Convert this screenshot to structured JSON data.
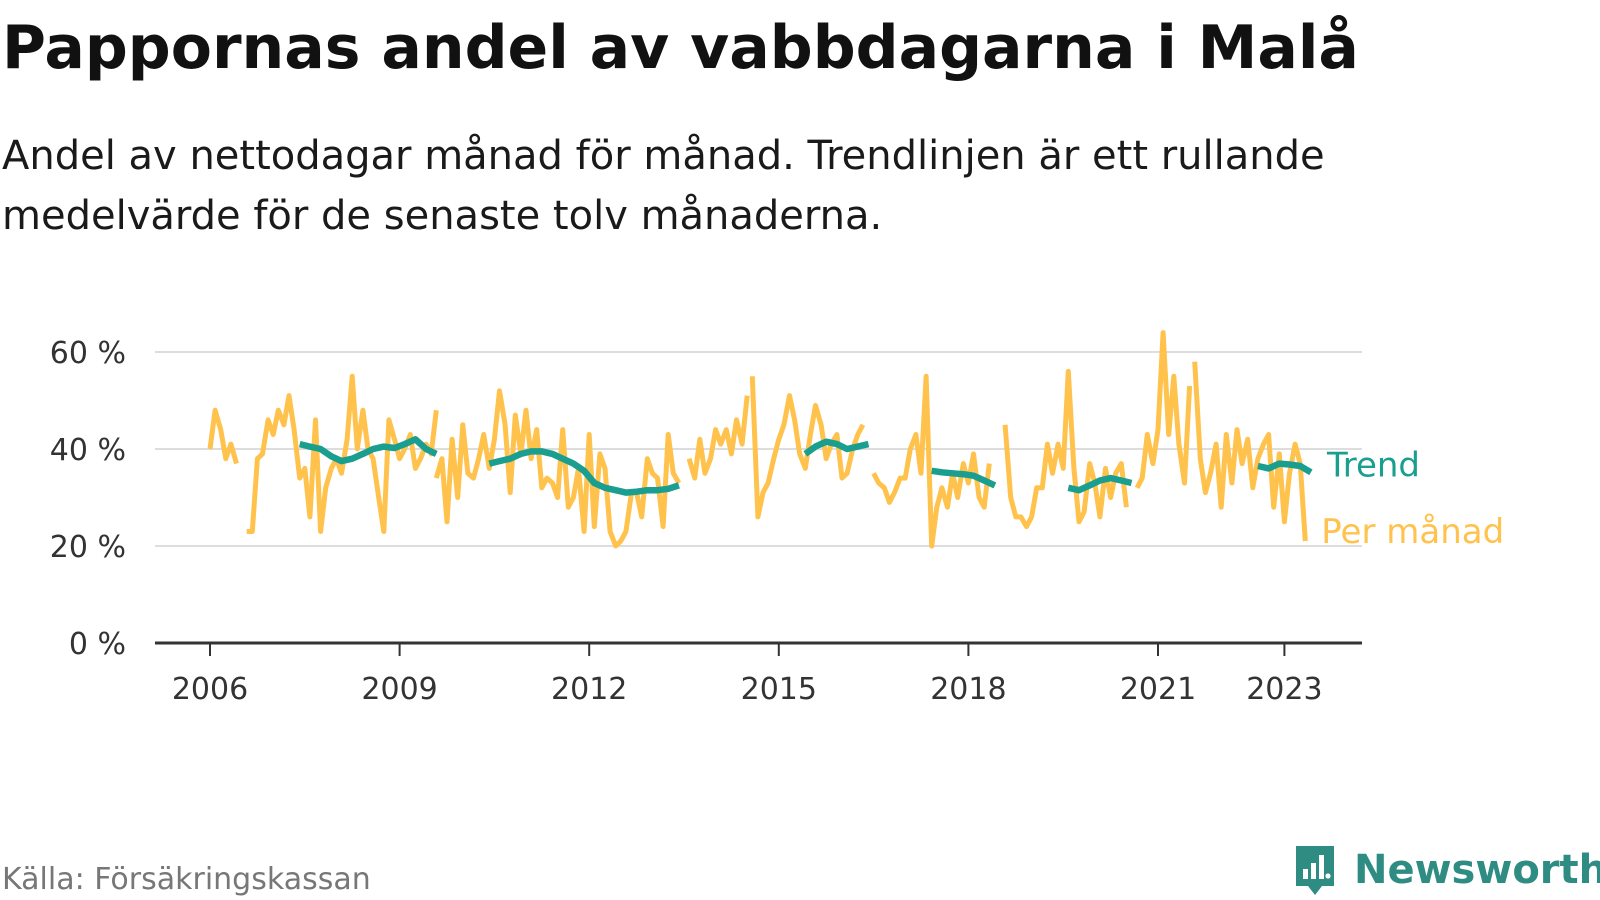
{
  "title": "Pappornas andel av vabbdagarna i Malå",
  "subtitle": "Andel av nettodagar månad för månad. Trendlinjen är ett rullande medelvärde för de senaste tolv månaderna.",
  "source": "Källa: Försäkringskassan",
  "brand": {
    "name": "Newsworthy",
    "icon": "newsworthy-logo-icon"
  },
  "colors": {
    "monthly": "#FFC24D",
    "trend": "#1A9E8F",
    "grid": "#DDDDDD",
    "axis": "#333333",
    "brand": "#2F8C83"
  },
  "chart_data": {
    "type": "line",
    "x_unit": "year",
    "xlim": [
      2006,
      2023.8
    ],
    "ylim": [
      0,
      60
    ],
    "grid": true,
    "y_ticks": [
      0,
      20,
      40,
      60
    ],
    "y_tick_labels": [
      "0 %",
      "20 %",
      "40 %",
      "60 %"
    ],
    "x_ticks": [
      2006,
      2009,
      2012,
      2015,
      2018,
      2021,
      2023
    ],
    "x_tick_labels": [
      "2006",
      "2009",
      "2012",
      "2015",
      "2018",
      "2021",
      "2023"
    ],
    "legend_placement": "end-of-line labels",
    "series": [
      {
        "name": "Per månad",
        "role": "monthly",
        "segments": [
          [
            [
              2006.0,
              40
            ],
            [
              2006.08,
              48
            ],
            [
              2006.17,
              44
            ],
            [
              2006.25,
              38
            ],
            [
              2006.33,
              41
            ],
            [
              2006.42,
              37
            ]
          ],
          [
            [
              2006.58,
              23
            ],
            [
              2006.67,
              23
            ],
            [
              2006.75,
              38
            ],
            [
              2006.83,
              39
            ],
            [
              2006.92,
              46
            ],
            [
              2007.0,
              43
            ],
            [
              2007.08,
              48
            ],
            [
              2007.17,
              45
            ],
            [
              2007.25,
              51
            ],
            [
              2007.33,
              44
            ],
            [
              2007.42,
              34
            ],
            [
              2007.5,
              36
            ],
            [
              2007.58,
              26
            ],
            [
              2007.67,
              46
            ],
            [
              2007.75,
              23
            ],
            [
              2007.83,
              32
            ],
            [
              2007.92,
              36
            ],
            [
              2008.0,
              38
            ],
            [
              2008.08,
              35
            ],
            [
              2008.17,
              42
            ],
            [
              2008.25,
              55
            ],
            [
              2008.33,
              40
            ],
            [
              2008.42,
              48
            ],
            [
              2008.5,
              40
            ],
            [
              2008.58,
              38
            ],
            [
              2008.67,
              30
            ],
            [
              2008.75,
              23
            ],
            [
              2008.83,
              46
            ],
            [
              2008.92,
              42
            ],
            [
              2009.0,
              38
            ],
            [
              2009.08,
              40
            ],
            [
              2009.17,
              43
            ],
            [
              2009.25,
              36
            ],
            [
              2009.33,
              38
            ],
            [
              2009.42,
              41
            ],
            [
              2009.5,
              39
            ],
            [
              2009.58,
              48
            ]
          ],
          [
            [
              2009.58,
              34
            ],
            [
              2009.67,
              38
            ],
            [
              2009.75,
              25
            ],
            [
              2009.83,
              42
            ],
            [
              2009.92,
              30
            ],
            [
              2010.0,
              45
            ],
            [
              2010.08,
              35
            ],
            [
              2010.17,
              34
            ],
            [
              2010.25,
              38
            ],
            [
              2010.33,
              43
            ],
            [
              2010.42,
              36
            ],
            [
              2010.5,
              42
            ],
            [
              2010.58,
              52
            ],
            [
              2010.67,
              45
            ],
            [
              2010.75,
              31
            ],
            [
              2010.83,
              47
            ],
            [
              2010.92,
              39
            ],
            [
              2011.0,
              48
            ],
            [
              2011.08,
              38
            ],
            [
              2011.17,
              44
            ],
            [
              2011.25,
              32
            ],
            [
              2011.33,
              34
            ],
            [
              2011.42,
              33
            ],
            [
              2011.5,
              30
            ],
            [
              2011.58,
              44
            ],
            [
              2011.67,
              28
            ],
            [
              2011.75,
              30
            ],
            [
              2011.83,
              36
            ],
            [
              2011.92,
              23
            ],
            [
              2012.0,
              43
            ],
            [
              2012.08,
              24
            ],
            [
              2012.17,
              39
            ],
            [
              2012.25,
              36
            ],
            [
              2012.33,
              23
            ],
            [
              2012.42,
              20
            ],
            [
              2012.5,
              21
            ],
            [
              2012.58,
              23
            ],
            [
              2012.67,
              31
            ],
            [
              2012.75,
              31
            ],
            [
              2012.83,
              26
            ],
            [
              2012.92,
              38
            ],
            [
              2013.0,
              35
            ],
            [
              2013.08,
              34
            ],
            [
              2013.17,
              24
            ],
            [
              2013.25,
              43
            ],
            [
              2013.33,
              35
            ],
            [
              2013.42,
              33
            ]
          ],
          [
            [
              2013.58,
              38
            ],
            [
              2013.67,
              34
            ],
            [
              2013.75,
              42
            ],
            [
              2013.83,
              35
            ],
            [
              2013.92,
              38
            ],
            [
              2014.0,
              44
            ],
            [
              2014.08,
              41
            ],
            [
              2014.17,
              44
            ],
            [
              2014.25,
              39
            ],
            [
              2014.33,
              46
            ],
            [
              2014.42,
              41
            ],
            [
              2014.5,
              51
            ]
          ],
          [
            [
              2014.58,
              55
            ],
            [
              2014.67,
              26
            ],
            [
              2014.75,
              31
            ],
            [
              2014.83,
              33
            ],
            [
              2014.92,
              38
            ],
            [
              2015.0,
              42
            ],
            [
              2015.08,
              45
            ],
            [
              2015.17,
              51
            ],
            [
              2015.25,
              46
            ],
            [
              2015.33,
              39
            ],
            [
              2015.42,
              36
            ],
            [
              2015.5,
              43
            ],
            [
              2015.58,
              49
            ],
            [
              2015.67,
              45
            ],
            [
              2015.75,
              38
            ],
            [
              2015.83,
              41
            ],
            [
              2015.92,
              43
            ],
            [
              2016.0,
              34
            ],
            [
              2016.08,
              35
            ],
            [
              2016.17,
              40
            ],
            [
              2016.25,
              43
            ],
            [
              2016.33,
              45
            ]
          ],
          [
            [
              2016.5,
              35
            ],
            [
              2016.58,
              33
            ],
            [
              2016.67,
              32
            ],
            [
              2016.75,
              29
            ],
            [
              2016.83,
              31
            ],
            [
              2016.92,
              34
            ],
            [
              2017.0,
              34
            ],
            [
              2017.08,
              40
            ],
            [
              2017.17,
              43
            ],
            [
              2017.25,
              35
            ],
            [
              2017.33,
              55
            ],
            [
              2017.42,
              20
            ],
            [
              2017.5,
              28
            ],
            [
              2017.58,
              32
            ],
            [
              2017.67,
              28
            ],
            [
              2017.75,
              35
            ],
            [
              2017.83,
              30
            ],
            [
              2017.92,
              37
            ],
            [
              2018.0,
              33
            ],
            [
              2018.08,
              39
            ],
            [
              2018.17,
              30
            ],
            [
              2018.25,
              28
            ],
            [
              2018.33,
              37
            ]
          ],
          [
            [
              2018.58,
              45
            ],
            [
              2018.67,
              30
            ],
            [
              2018.75,
              26
            ],
            [
              2018.83,
              26
            ],
            [
              2018.92,
              24
            ],
            [
              2019.0,
              26
            ],
            [
              2019.08,
              32
            ],
            [
              2019.17,
              32
            ],
            [
              2019.25,
              41
            ],
            [
              2019.33,
              35
            ],
            [
              2019.42,
              41
            ],
            [
              2019.5,
              36
            ],
            [
              2019.58,
              56
            ],
            [
              2019.67,
              36
            ],
            [
              2019.75,
              25
            ],
            [
              2019.83,
              27
            ],
            [
              2019.92,
              37
            ],
            [
              2020.0,
              33
            ],
            [
              2020.08,
              26
            ],
            [
              2020.17,
              36
            ],
            [
              2020.25,
              30
            ],
            [
              2020.33,
              35
            ],
            [
              2020.42,
              37
            ],
            [
              2020.5,
              28
            ]
          ],
          [
            [
              2020.67,
              32
            ],
            [
              2020.75,
              34
            ],
            [
              2020.83,
              43
            ],
            [
              2020.92,
              37
            ],
            [
              2021.0,
              44
            ],
            [
              2021.08,
              64
            ],
            [
              2021.17,
              43
            ],
            [
              2021.25,
              55
            ],
            [
              2021.33,
              41
            ],
            [
              2021.42,
              33
            ],
            [
              2021.5,
              53
            ]
          ],
          [
            [
              2021.58,
              58
            ],
            [
              2021.67,
              38
            ],
            [
              2021.75,
              31
            ],
            [
              2021.83,
              35
            ],
            [
              2021.92,
              41
            ],
            [
              2022.0,
              28
            ],
            [
              2022.08,
              43
            ],
            [
              2022.17,
              33
            ],
            [
              2022.25,
              44
            ],
            [
              2022.33,
              37
            ],
            [
              2022.42,
              42
            ],
            [
              2022.5,
              32
            ],
            [
              2022.58,
              38
            ],
            [
              2022.67,
              41
            ],
            [
              2022.75,
              43
            ],
            [
              2022.83,
              28
            ],
            [
              2022.92,
              39
            ],
            [
              2023.0,
              25
            ],
            [
              2023.08,
              35
            ],
            [
              2023.17,
              41
            ],
            [
              2023.25,
              37
            ],
            [
              2023.33,
              21
            ]
          ]
        ]
      },
      {
        "name": "Trend",
        "role": "trend",
        "segments": [
          [
            [
              2007.42,
              41
            ],
            [
              2007.58,
              40.5
            ],
            [
              2007.75,
              40
            ],
            [
              2007.92,
              38.5
            ],
            [
              2008.08,
              37.5
            ],
            [
              2008.25,
              38
            ],
            [
              2008.42,
              39
            ],
            [
              2008.58,
              40
            ],
            [
              2008.75,
              40.5
            ],
            [
              2008.92,
              40.2
            ],
            [
              2009.08,
              41
            ],
            [
              2009.25,
              42
            ],
            [
              2009.42,
              40
            ],
            [
              2009.58,
              39
            ]
          ],
          [
            [
              2010.42,
              37
            ],
            [
              2010.58,
              37.5
            ],
            [
              2010.75,
              38
            ],
            [
              2010.92,
              39
            ],
            [
              2011.08,
              39.5
            ],
            [
              2011.25,
              39.5
            ],
            [
              2011.42,
              39
            ],
            [
              2011.58,
              38
            ],
            [
              2011.75,
              37
            ],
            [
              2011.92,
              35.5
            ],
            [
              2012.08,
              33
            ],
            [
              2012.25,
              32
            ],
            [
              2012.42,
              31.5
            ],
            [
              2012.58,
              31
            ],
            [
              2012.75,
              31.2
            ],
            [
              2012.92,
              31.5
            ],
            [
              2013.08,
              31.5
            ],
            [
              2013.25,
              31.8
            ],
            [
              2013.42,
              32.5
            ]
          ],
          [
            [
              2015.42,
              39
            ],
            [
              2015.58,
              40.5
            ],
            [
              2015.75,
              41.5
            ],
            [
              2015.92,
              41
            ],
            [
              2016.08,
              40
            ],
            [
              2016.25,
              40.5
            ],
            [
              2016.42,
              41
            ]
          ],
          [
            [
              2017.42,
              35.5
            ],
            [
              2017.58,
              35.2
            ],
            [
              2017.75,
              35
            ],
            [
              2017.92,
              34.8
            ],
            [
              2018.08,
              34.5
            ],
            [
              2018.25,
              33.5
            ],
            [
              2018.42,
              32.5
            ]
          ],
          [
            [
              2019.58,
              32
            ],
            [
              2019.75,
              31.5
            ],
            [
              2019.92,
              32.5
            ],
            [
              2020.08,
              33.5
            ],
            [
              2020.25,
              34
            ],
            [
              2020.42,
              33.5
            ],
            [
              2020.58,
              33
            ]
          ],
          [
            [
              2022.58,
              36.5
            ],
            [
              2022.75,
              36
            ],
            [
              2022.92,
              37
            ],
            [
              2023.08,
              36.8
            ],
            [
              2023.25,
              36.5
            ],
            [
              2023.42,
              35.2
            ]
          ]
        ]
      }
    ]
  }
}
